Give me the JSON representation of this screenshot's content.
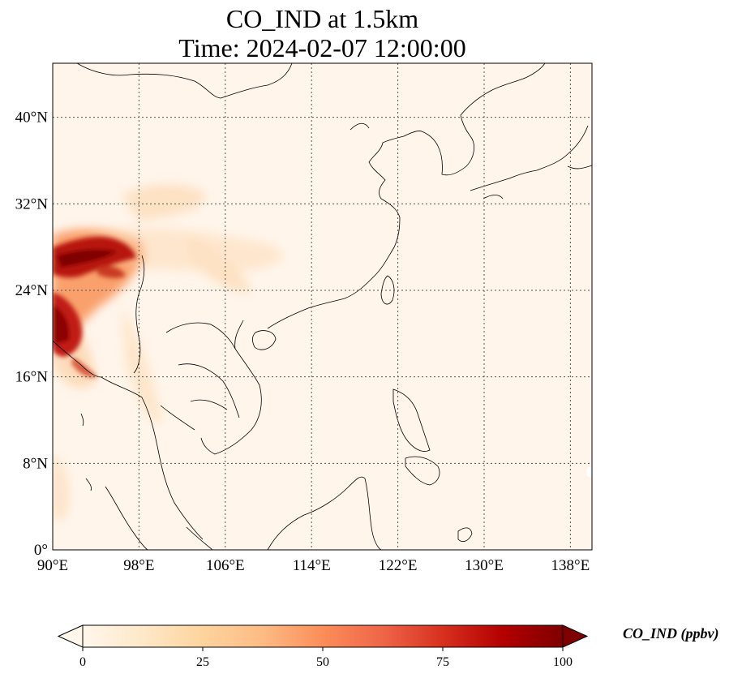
{
  "title": {
    "line1": "CO_IND at 1.5km",
    "line2": "Time: 2024-02-07 12:00:00"
  },
  "map": {
    "variable": "CO_IND",
    "level": "1.5km",
    "lon_range": [
      90,
      140
    ],
    "lat_range": [
      0,
      45
    ],
    "gridlines": "dotted",
    "lon_ticks": [
      "90°E",
      "98°E",
      "106°E",
      "114°E",
      "122°E",
      "130°E",
      "138°E"
    ],
    "lon_tick_values": [
      90,
      98,
      106,
      114,
      122,
      130,
      138
    ],
    "lat_ticks": [
      "0°",
      "8°N",
      "16°N",
      "24°N",
      "32°N",
      "40°N"
    ],
    "lat_tick_values": [
      0,
      8,
      16,
      24,
      32,
      40
    ]
  },
  "colorbar": {
    "label": "CO_IND (ppbv)",
    "colormap": "OrRd",
    "min": 0,
    "max": 100,
    "ticks": [
      "0",
      "25",
      "50",
      "75",
      "100"
    ],
    "tick_values": [
      0,
      25,
      50,
      75,
      100
    ],
    "colors": [
      "#fff7ec",
      "#fee8c8",
      "#fdd49e",
      "#fdbb84",
      "#fc8d59",
      "#ef6548",
      "#d7301f",
      "#b30000",
      "#7f0000"
    ]
  }
}
